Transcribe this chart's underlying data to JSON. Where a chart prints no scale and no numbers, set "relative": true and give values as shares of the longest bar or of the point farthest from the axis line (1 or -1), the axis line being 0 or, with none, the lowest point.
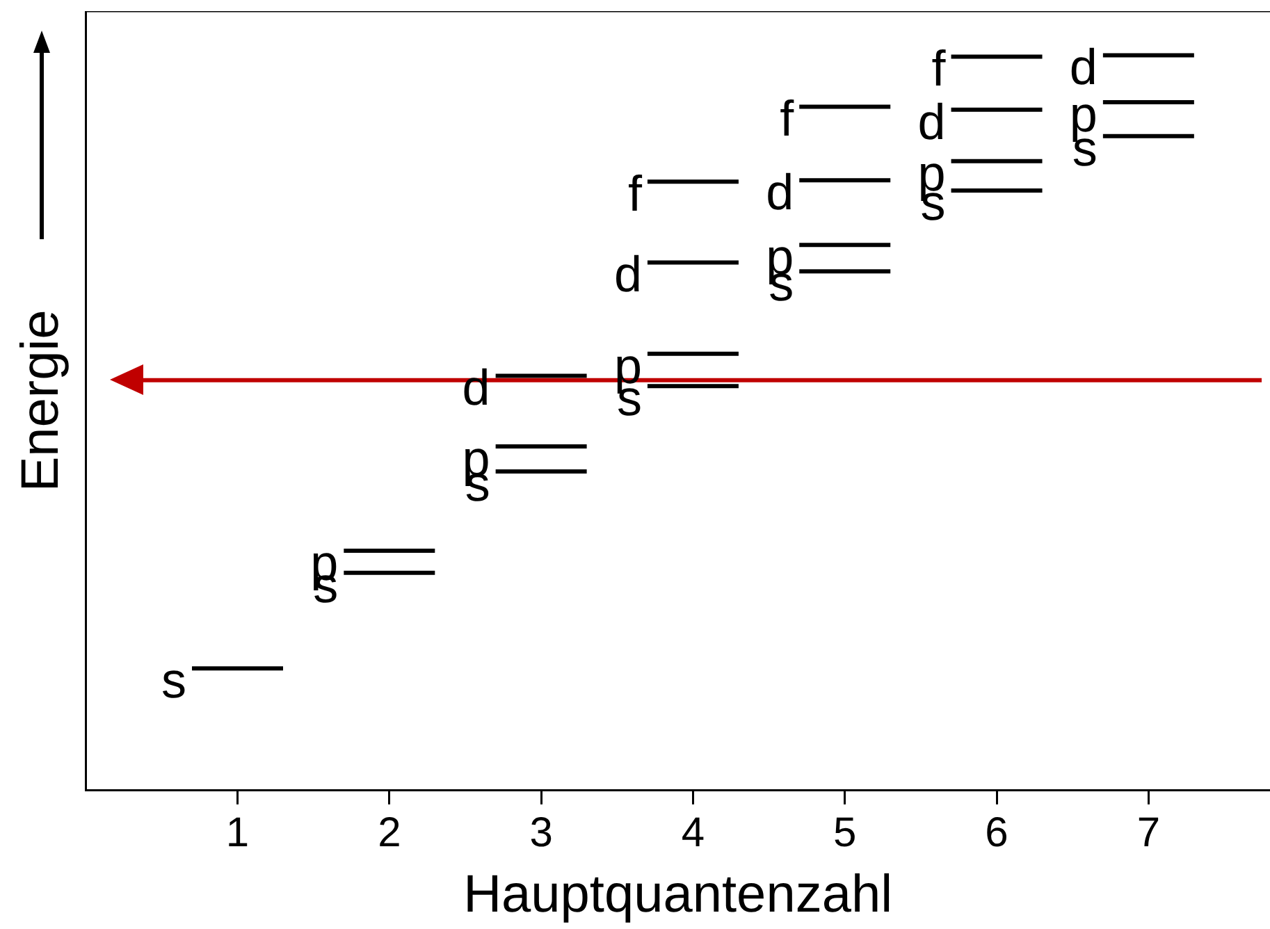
{
  "chart_data": {
    "type": "line",
    "relative": true,
    "xlabel": "Hauptquantenzahl",
    "ylabel": "Energie",
    "xlim": [
      0,
      7.8
    ],
    "xticks": [
      1,
      2,
      3,
      4,
      5,
      6,
      7
    ],
    "grid": false,
    "legend": false,
    "marker": "none",
    "line_style": "solid",
    "series": [
      {
        "name": "s",
        "color": "#000000",
        "x": [
          0.7,
          1.3,
          null,
          1.7,
          2.3,
          null,
          2.7,
          3.3,
          null,
          3.7,
          4.3,
          null,
          4.7,
          5.3,
          null,
          5.7,
          6.3,
          null,
          6.7,
          7.3
        ],
        "values": [
          0.166,
          0.166,
          null,
          0.296,
          0.296,
          null,
          0.434,
          0.434,
          null,
          0.55,
          0.55,
          null,
          0.706,
          0.706,
          null,
          0.816,
          0.816,
          null,
          0.89,
          0.89
        ]
      },
      {
        "name": "p",
        "color": "#000000",
        "x": [
          1.7,
          2.3,
          null,
          2.7,
          3.3,
          null,
          3.7,
          4.3,
          null,
          4.7,
          5.3,
          null,
          5.7,
          6.3,
          null,
          6.7,
          7.3
        ],
        "values": [
          0.326,
          0.326,
          null,
          0.468,
          0.468,
          null,
          0.594,
          0.594,
          null,
          0.742,
          0.742,
          null,
          0.856,
          0.856,
          null,
          0.936,
          0.936
        ]
      },
      {
        "name": "d",
        "color": "#000000",
        "x": [
          2.7,
          3.3,
          null,
          3.7,
          4.3,
          null,
          4.7,
          5.3,
          null,
          5.7,
          6.3,
          null,
          6.7,
          7.3
        ],
        "values": [
          0.564,
          0.564,
          null,
          0.718,
          0.718,
          null,
          0.83,
          0.83,
          null,
          0.926,
          0.926,
          null,
          1.0,
          1.0
        ]
      },
      {
        "name": "f",
        "color": "#000000",
        "x": [
          3.7,
          4.3,
          null,
          4.7,
          5.3,
          null,
          5.7,
          6.3
        ],
        "values": [
          0.828,
          0.828,
          null,
          0.93,
          0.93,
          null,
          0.998,
          0.998
        ]
      }
    ],
    "ref_lines": [
      {
        "axis": "y",
        "value": 0.558,
        "color": "#c00000"
      }
    ]
  }
}
